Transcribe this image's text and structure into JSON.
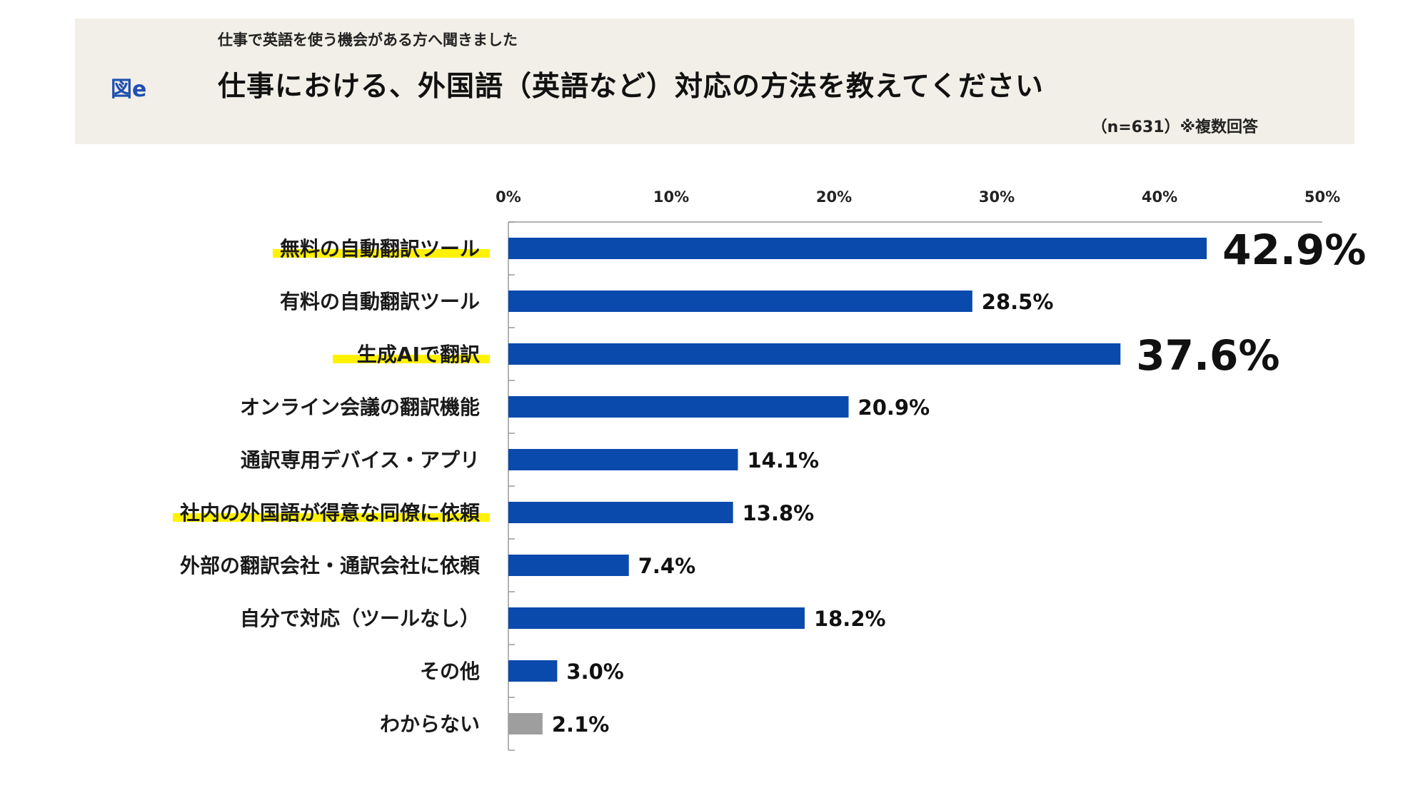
{
  "header": {
    "figure_label": "図e",
    "subtitle": "仕事で英語を使う機会がある方へ聞きました",
    "title": "仕事における、外国語（英語など）対応の方法を教えてください",
    "note": "（n=631）※複数回答"
  },
  "chart_data": {
    "type": "bar",
    "orientation": "horizontal",
    "xlim": [
      0,
      50
    ],
    "x_ticks": [
      "0%",
      "10%",
      "20%",
      "30%",
      "40%",
      "50%"
    ],
    "x_tick_values": [
      0,
      10,
      20,
      30,
      40,
      50
    ],
    "grid": false,
    "categories": [
      "無料の自動翻訳ツール",
      "有料の自動翻訳ツール",
      "生成AIで翻訳",
      "オンライン会議の翻訳機能",
      "通訳専用デバイス・アプリ",
      "社内の外国語が得意な同僚に依頼",
      "外部の翻訳会社・通訳会社に依頼",
      "自分で対応（ツールなし）",
      "その他",
      "わからない"
    ],
    "values": [
      42.9,
      28.5,
      37.6,
      20.9,
      14.1,
      13.8,
      7.4,
      18.2,
      3.0,
      2.1
    ],
    "value_labels": [
      "42.9%",
      "28.5%",
      "37.6%",
      "20.9%",
      "14.1%",
      "13.8%",
      "7.4%",
      "18.2%",
      "3.0%",
      "2.1%"
    ],
    "highlighted": [
      true,
      false,
      true,
      false,
      false,
      true,
      false,
      false,
      false,
      false
    ],
    "emphasized_labels": [
      true,
      false,
      true,
      false,
      false,
      false,
      false,
      false,
      false,
      false
    ],
    "bar_colors": [
      "#0a4aad",
      "#0a4aad",
      "#0a4aad",
      "#0a4aad",
      "#0a4aad",
      "#0a4aad",
      "#0a4aad",
      "#0a4aad",
      "#0a4aad",
      "#9e9e9e"
    ],
    "highlight_color": "#fff200"
  }
}
